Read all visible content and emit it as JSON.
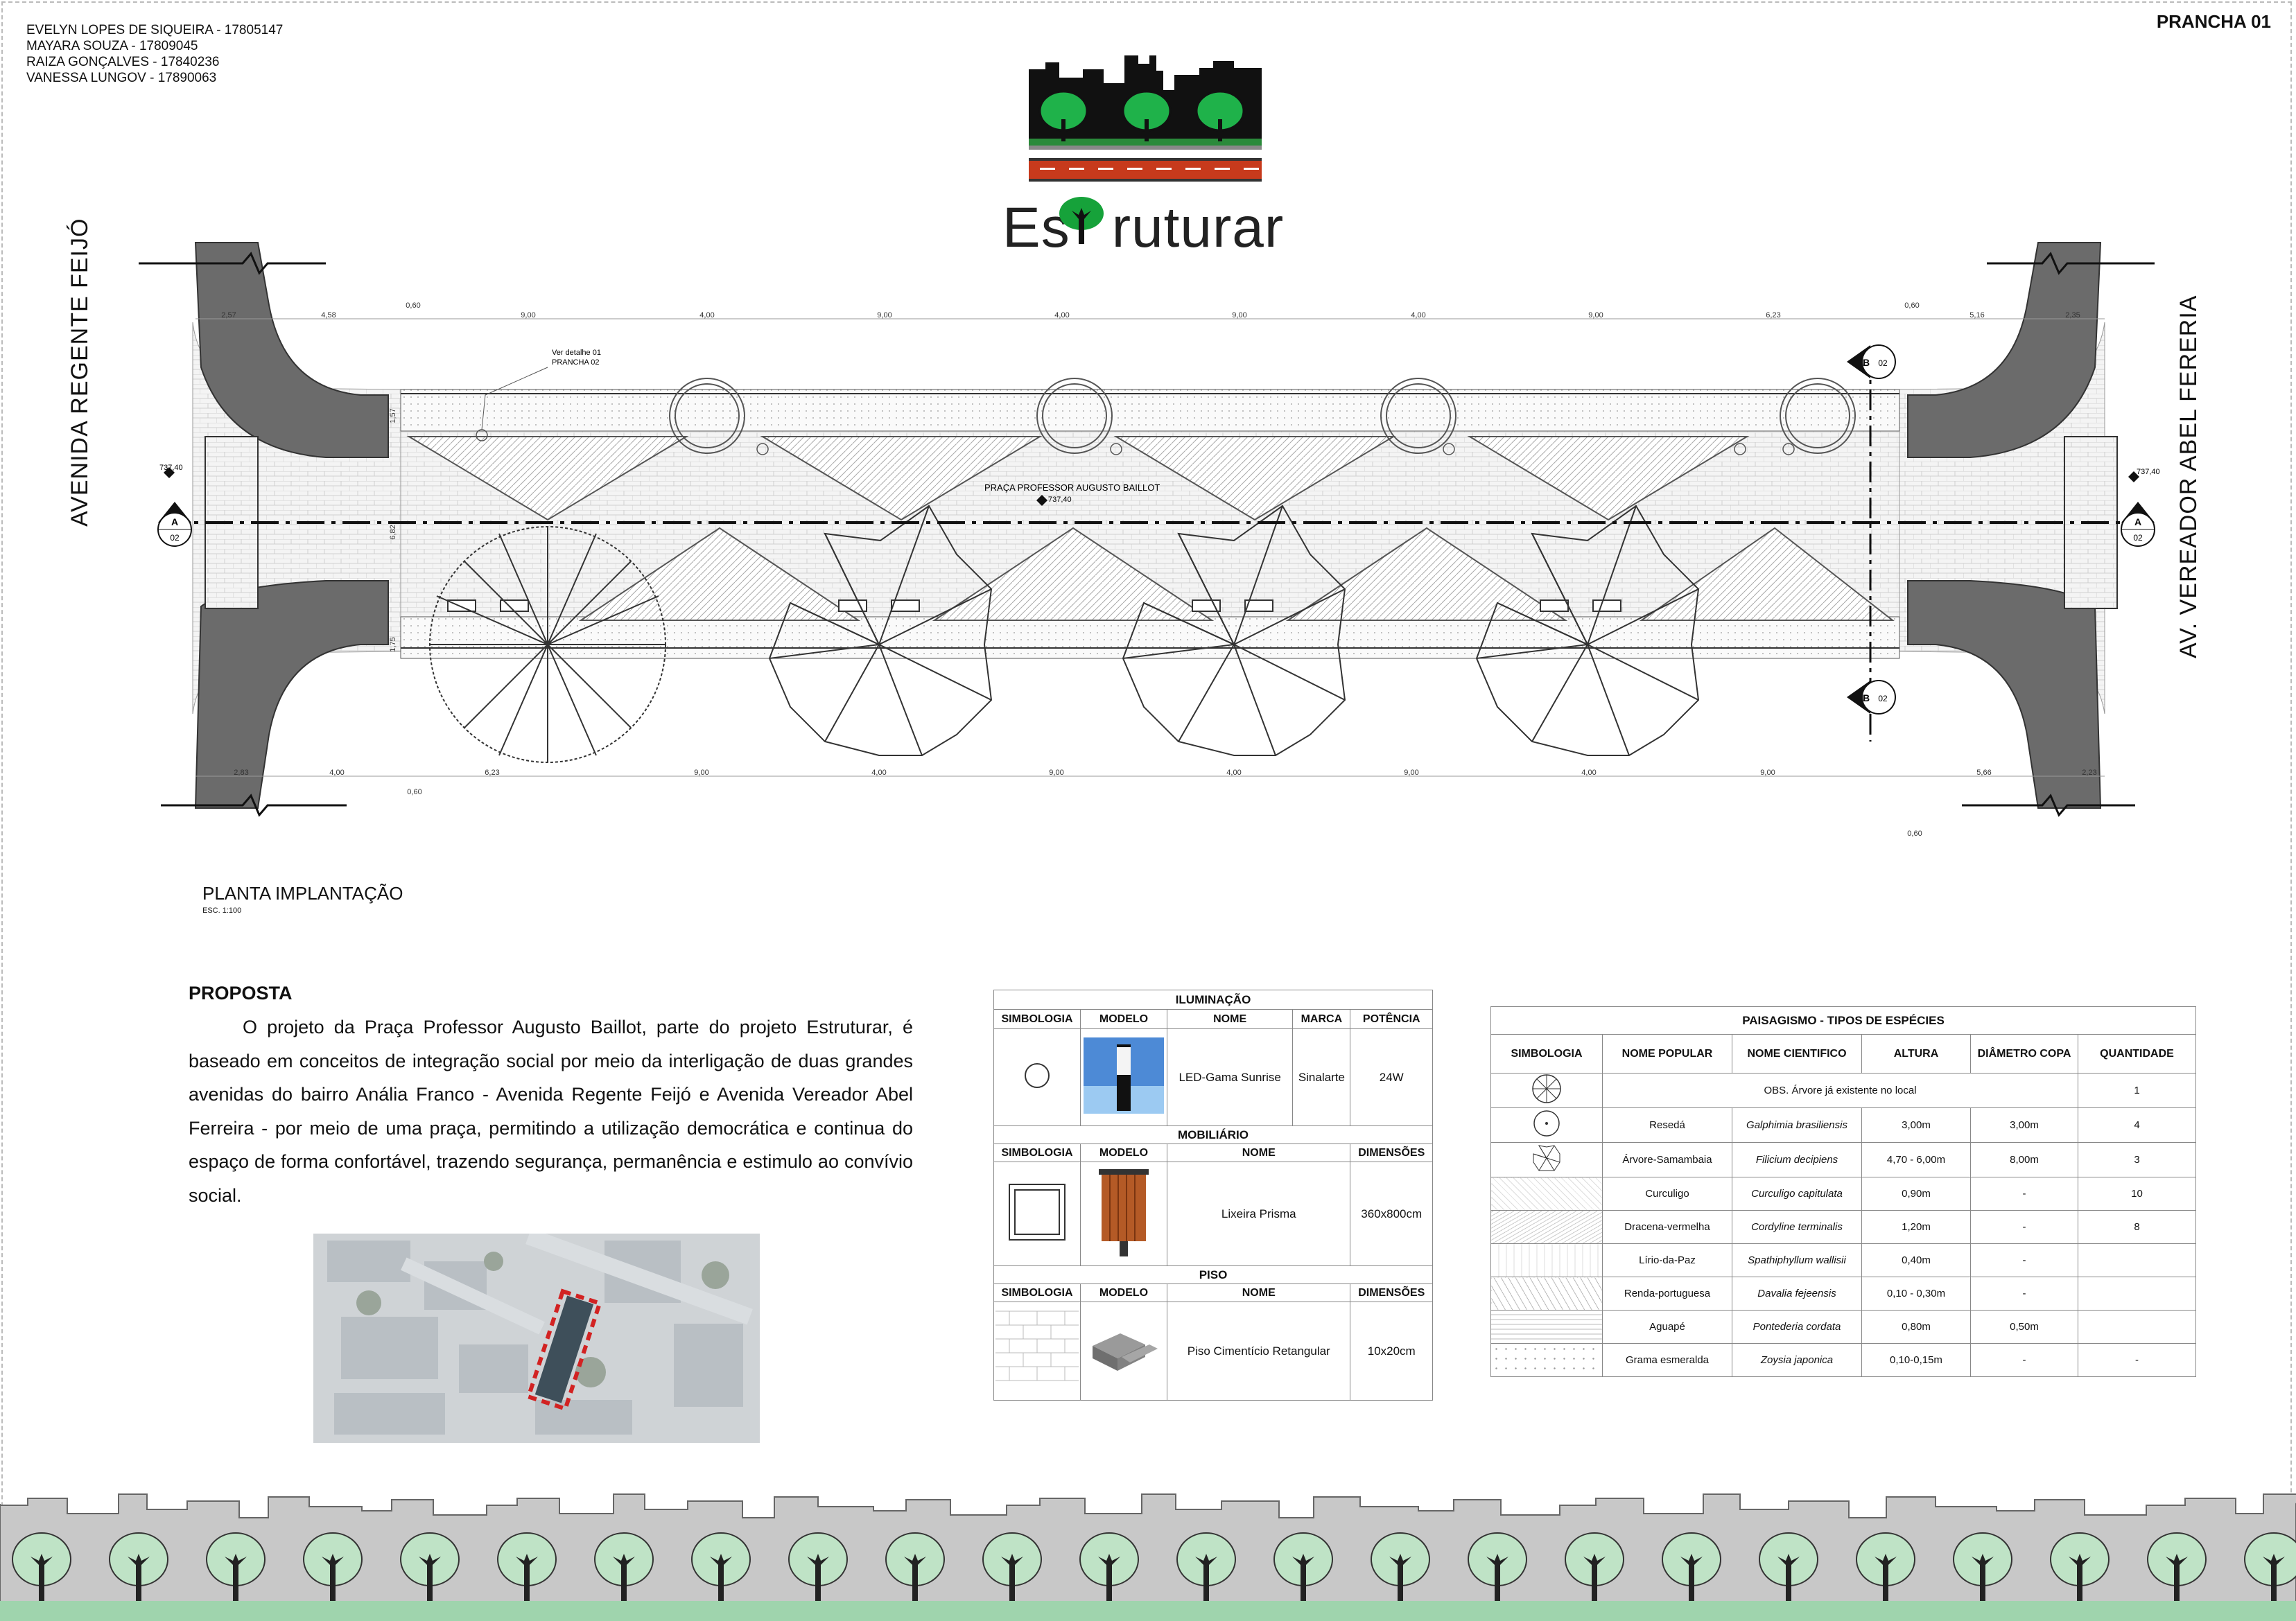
{
  "header": {
    "authors": [
      "EVELYN LOPES DE SIQUEIRA - 17805147",
      "MAYARA SOUZA - 17809045",
      "RAIZA GONÇALVES - 17840236",
      "VANESSA LUNGOV - 17890063"
    ],
    "sheet": "PRANCHA 01",
    "logo_text_a": "Es",
    "logo_text_b": "ruturar"
  },
  "plan": {
    "street_left": "AVENIDA REGENTE FEIJÓ",
    "street_right": "AV. VEREADOR ABEL FERERIA",
    "square_label": "PRAÇA PROFESSOR AUGUSTO BAILLOT",
    "level": "737,40",
    "detail_note_1": "Ver detalhe 01",
    "detail_note_2": "PRANCHA 02",
    "section_a": "A",
    "section_b": "B",
    "section_sheet": "02",
    "top_dims": [
      "2,57",
      "4,58",
      "0,60",
      "9,00",
      "4,00",
      "9,00",
      "4,00",
      "9,00",
      "4,00",
      "9,00",
      "6,23",
      "0,60",
      "5,16",
      "2,35"
    ],
    "bottom_dims": [
      "2,83",
      "4,00",
      "6,23",
      "9,00",
      "4,00",
      "9,00",
      "4,00",
      "9,00",
      "4,00",
      "9,00",
      "0,60",
      "5,66",
      "2,23"
    ],
    "bottom_small": "0,60",
    "side_dims": [
      "1,57",
      "6,82",
      "1,75"
    ],
    "title": "PLANTA IMPLANTAÇÃO",
    "scale": "ESC. 1:100"
  },
  "proposal": {
    "title": "PROPOSTA",
    "text": "O projeto da Praça Professor Augusto Baillot, parte do projeto Estruturar, é baseado em conceitos de integração social por meio da interligação de duas grandes avenidas do bairro Anália Franco - Avenida Regente Feijó e Avenida Vereador Abel Ferreira - por meio de uma praça, permitindo a utilização democrática e continua do espaço de forma confortável, trazendo segurança, permanência e estimulo ao convívio social."
  },
  "lighting_table": {
    "title": "ILUMINAÇÃO",
    "headers": [
      "SIMBOLOGIA",
      "MODELO",
      "NOME",
      "MARCA",
      "POTÊNCIA"
    ],
    "row": {
      "name": "LED-Gama Sunrise",
      "brand": "Sinalarte",
      "power": "24W"
    },
    "furniture_title": "MOBILIÁRIO",
    "furniture_headers": [
      "SIMBOLOGIA",
      "MODELO",
      "NOME",
      "DIMENSÕES"
    ],
    "furniture_row": {
      "name": "Lixeira Prisma",
      "dims": "360x800cm"
    },
    "floor_title": "PISO",
    "floor_headers": [
      "SIMBOLOGIA",
      "MODELO",
      "NOME",
      "DIMENSÕES"
    ],
    "floor_row": {
      "name": "Piso Cimentício Retangular",
      "dims": "10x20cm"
    }
  },
  "landscape_table": {
    "title": "PAISAGISMO - TIPOS DE ESPÉCIES",
    "headers": [
      "SIMBOLOGIA",
      "NOME POPULAR",
      "NOME CIENTIFICO",
      "ALTURA",
      "DIÂMETRO COPA",
      "QUANTIDADE"
    ],
    "note": "OBS. Árvore já existente no local",
    "note_qty": "1",
    "rows": [
      {
        "popular": "Resedá",
        "scientific": "Galphimia brasiliensis",
        "height": "3,00m",
        "diameter": "3,00m",
        "qty": "4"
      },
      {
        "popular": "Árvore-Samambaia",
        "scientific": "Filicium decipiens",
        "height": "4,70 - 6,00m",
        "diameter": "8,00m",
        "qty": "3"
      },
      {
        "popular": "Curculigo",
        "scientific": "Curculigo capitulata",
        "height": "0,90m",
        "diameter": "-",
        "qty": "10"
      },
      {
        "popular": "Dracena-vermelha",
        "scientific": "Cordyline terminalis",
        "height": "1,20m",
        "diameter": "-",
        "qty": "8"
      },
      {
        "popular": "Lírio-da-Paz",
        "scientific": "Spathiphyllum wallisii",
        "height": "0,40m",
        "diameter": "-",
        "qty": ""
      },
      {
        "popular": "Renda-portuguesa",
        "scientific": "Davalia fejeensis",
        "height": "0,10 - 0,30m",
        "diameter": "-",
        "qty": ""
      },
      {
        "popular": "Aguapé",
        "scientific": "Pontederia cordata",
        "height": "0,80m",
        "diameter": "0,50m",
        "qty": ""
      },
      {
        "popular": "Grama esmeralda",
        "scientific": "Zoysia japonica",
        "height": "0,10-0,15m",
        "diameter": "-",
        "qty": "-"
      }
    ]
  },
  "colors": {
    "road": "#6b6b6b",
    "tree_green": "#16a23a",
    "footer_green": "#bfe3c6",
    "footer_gray": "#c8c8c8",
    "red": "#d22222"
  }
}
